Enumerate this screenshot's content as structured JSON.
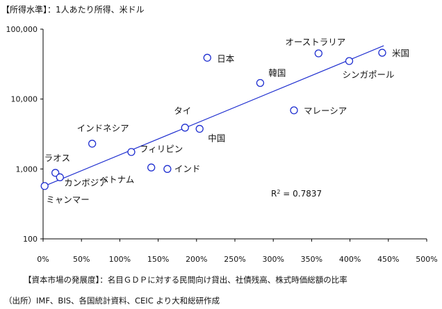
{
  "header": {
    "y_axis_title": "【所得水準】：1人あたり所得、米ドル",
    "x_axis_title": "【資本市場の発展度】：名目ＧＤＰに対する民間向け貸出、社債残高、株式時価総額の比率",
    "source": "（出所）IMF、BIS、各国統計資料、CEIC より大和総研作成"
  },
  "chart_data": {
    "type": "scatter",
    "title": "",
    "xlabel": "【資本市場の発展度】：名目ＧＤＰに対する民間向け貸出、社債残高、株式時価総額の比率",
    "ylabel": "【所得水準】：1人あたり所得、米ドル",
    "x_unit": "%",
    "xlim": [
      0,
      500
    ],
    "ylim": [
      100,
      100000
    ],
    "y_scale": "log",
    "x_ticks": [
      0,
      50,
      100,
      150,
      200,
      250,
      300,
      350,
      400,
      450,
      500
    ],
    "x_tick_labels": [
      "0%",
      "50%",
      "100%",
      "150%",
      "200%",
      "250%",
      "300%",
      "350%",
      "400%",
      "450%",
      "500%"
    ],
    "y_ticks": [
      100,
      1000,
      10000,
      100000
    ],
    "y_tick_labels": [
      "100",
      "1,000",
      "10,000",
      "100,000"
    ],
    "grid": false,
    "marker": "open-circle",
    "color": "#1f2fd0",
    "points": [
      {
        "label": "ミャンマー",
        "x": 2,
        "y": 570
      },
      {
        "label": "ラオス",
        "x": 16,
        "y": 880
      },
      {
        "label": "カンボジア",
        "x": 22,
        "y": 760
      },
      {
        "label": "インドネシア",
        "x": 64,
        "y": 2300
      },
      {
        "label": "フィリピン",
        "x": 115,
        "y": 1750
      },
      {
        "label": "ベトナム",
        "x": 141,
        "y": 1050
      },
      {
        "label": "インド",
        "x": 162,
        "y": 1000
      },
      {
        "label": "タイ",
        "x": 185,
        "y": 3900
      },
      {
        "label": "中国",
        "x": 204,
        "y": 3750
      },
      {
        "label": "日本",
        "x": 214,
        "y": 39000
      },
      {
        "label": "韓国",
        "x": 283,
        "y": 17000
      },
      {
        "label": "マレーシア",
        "x": 327,
        "y": 6900
      },
      {
        "label": "オーストラリア",
        "x": 359,
        "y": 45000
      },
      {
        "label": "シンガポール",
        "x": 399,
        "y": 35000
      },
      {
        "label": "米国",
        "x": 442,
        "y": 46000
      }
    ],
    "trendline": {
      "type": "exponential",
      "start": {
        "x": 0,
        "y": 560
      },
      "end": {
        "x": 444,
        "y": 58000
      }
    },
    "annotations": {
      "r2_label": "R",
      "r2_superscript": "2",
      "r2_value": " = 0.7837"
    }
  }
}
